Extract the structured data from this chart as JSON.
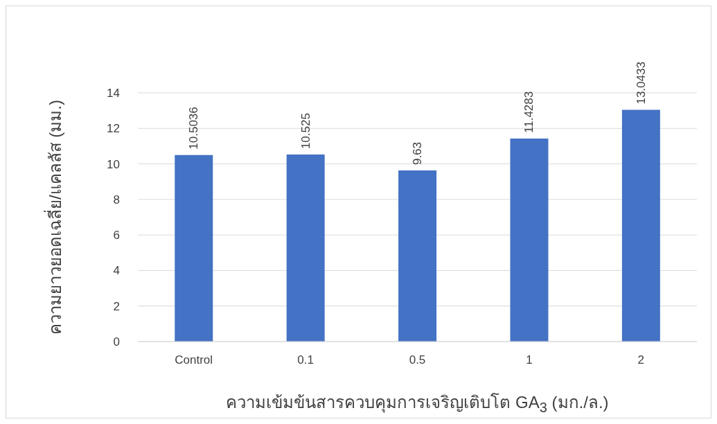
{
  "chart_data": {
    "type": "bar",
    "xlabel": "ความเข้มข้นสารควบคุมการเจริญเติบโต GA$_{3}$ (มก./ล.)",
    "ylabel": "ความยาวยอดเฉลี่ย/แคลลัส (มม.)",
    "categories": [
      "Control",
      "0.1",
      "0.5",
      "1",
      "2"
    ],
    "values": [
      10.5036,
      10.525,
      9.63,
      11.4283,
      13.0433
    ],
    "color": "#4472c4",
    "ylim": [
      0,
      14
    ],
    "yticks": [
      0,
      2,
      4,
      6,
      8,
      10,
      12,
      14
    ],
    "grid": "y",
    "data_labels": true,
    "legend": false
  }
}
